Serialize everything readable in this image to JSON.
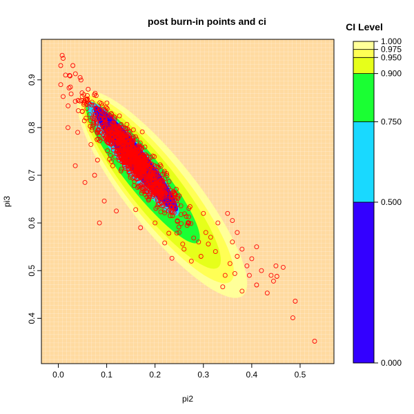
{
  "chart_data": {
    "type": "scatter",
    "title": "post burn-in points and ci",
    "xlabel": "pi2",
    "ylabel": "pi3",
    "xlim": [
      -0.035,
      0.57
    ],
    "ylim": [
      0.305,
      0.985
    ],
    "x_ticks": [
      0.0,
      0.1,
      0.2,
      0.3,
      0.4,
      0.5
    ],
    "x_tick_labels": [
      "0.0",
      "0.1",
      "0.2",
      "0.3",
      "0.4",
      "0.5"
    ],
    "y_ticks": [
      0.4,
      0.5,
      0.6,
      0.7,
      0.8,
      0.9
    ],
    "y_tick_labels": [
      "0.4",
      "0.5",
      "0.6",
      "0.7",
      "0.8",
      "0.9"
    ],
    "grid": true,
    "legend": {
      "title": "CI Level",
      "placement": "right",
      "breaks": [
        0.0,
        0.5,
        0.75,
        0.9,
        0.95,
        0.975,
        1.0
      ],
      "labels": [
        "0.000",
        "0.500",
        "0.750",
        "0.900",
        "0.950",
        "0.975",
        "1.000"
      ],
      "colors": [
        "#3300ff",
        "#19d9ff",
        "#1aff33",
        "#e6ff1a",
        "#ffff55",
        "#ffff99"
      ],
      "background_color": "#ffdaa0"
    },
    "colors": {
      "background": "#ffdaa0",
      "ci_975": "#ffff99",
      "ci_95": "#ffff55",
      "ci_90": "#e6ff1a",
      "ci_75": "#1aff33",
      "ci_50": "#19d9ff",
      "ci_core": "#3300ff",
      "points": "#ff0000"
    },
    "regions": [
      {
        "level": 0.975,
        "center": [
          0.215,
          0.66
        ],
        "half_major": 0.27,
        "half_minor": 0.072,
        "angle_deg": -52
      },
      {
        "level": 0.95,
        "center": [
          0.205,
          0.67
        ],
        "half_major": 0.245,
        "half_minor": 0.06,
        "angle_deg": -52
      },
      {
        "level": 0.9,
        "center": [
          0.195,
          0.68
        ],
        "half_major": 0.22,
        "half_minor": 0.05,
        "angle_deg": -52
      },
      {
        "level": 0.75,
        "center": [
          0.175,
          0.705
        ],
        "half_major": 0.185,
        "half_minor": 0.038,
        "angle_deg": -52
      },
      {
        "level": 0.5,
        "center": [
          0.155,
          0.735
        ],
        "half_major": 0.15,
        "half_minor": 0.027,
        "angle_deg": -52
      }
    ],
    "points_main": {
      "count": 900,
      "center": [
        0.155,
        0.735
      ],
      "major_sd": 0.075,
      "minor_sd": 0.015,
      "angle_deg": -52
    },
    "points_tail": [
      [
        0.53,
        0.352
      ],
      [
        0.49,
        0.436
      ],
      [
        0.485,
        0.401
      ],
      [
        0.465,
        0.507
      ],
      [
        0.45,
        0.51
      ],
      [
        0.452,
        0.488
      ],
      [
        0.445,
        0.478
      ],
      [
        0.432,
        0.453
      ],
      [
        0.41,
        0.47
      ],
      [
        0.38,
        0.457
      ],
      [
        0.34,
        0.466
      ],
      [
        0.365,
        0.494
      ],
      [
        0.39,
        0.51
      ],
      [
        0.37,
        0.53
      ],
      [
        0.38,
        0.545
      ],
      [
        0.355,
        0.515
      ],
      [
        0.345,
        0.49
      ],
      [
        0.325,
        0.54
      ],
      [
        0.36,
        0.56
      ],
      [
        0.295,
        0.53
      ],
      [
        0.275,
        0.52
      ],
      [
        0.235,
        0.526
      ],
      [
        0.305,
        0.58
      ],
      [
        0.315,
        0.57
      ],
      [
        0.29,
        0.56
      ],
      [
        0.33,
        0.6
      ],
      [
        0.22,
        0.558
      ],
      [
        0.26,
        0.545
      ],
      [
        0.12,
        0.625
      ],
      [
        0.085,
        0.6
      ],
      [
        0.17,
        0.59
      ],
      [
        0.095,
        0.646
      ],
      [
        0.055,
        0.685
      ],
      [
        0.035,
        0.72
      ],
      [
        0.02,
        0.8
      ],
      [
        0.04,
        0.79
      ],
      [
        0.035,
        0.855
      ],
      [
        0.01,
        0.865
      ],
      [
        0.005,
        0.89
      ],
      [
        0.015,
        0.91
      ],
      [
        0.005,
        0.93
      ],
      [
        0.01,
        0.945
      ],
      [
        0.03,
        0.93
      ],
      [
        0.045,
        0.905
      ],
      [
        0.025,
        0.885
      ],
      [
        0.06,
        0.86
      ],
      [
        0.075,
        0.7
      ],
      [
        0.41,
        0.55
      ],
      [
        0.4,
        0.525
      ],
      [
        0.35,
        0.62
      ],
      [
        0.36,
        0.605
      ],
      [
        0.395,
        0.49
      ],
      [
        0.42,
        0.5
      ],
      [
        0.16,
        0.628
      ],
      [
        0.2,
        0.6
      ],
      [
        0.25,
        0.58
      ],
      [
        0.27,
        0.6
      ],
      [
        0.3,
        0.62
      ],
      [
        0.37,
        0.58
      ],
      [
        0.44,
        0.49
      ]
    ]
  }
}
